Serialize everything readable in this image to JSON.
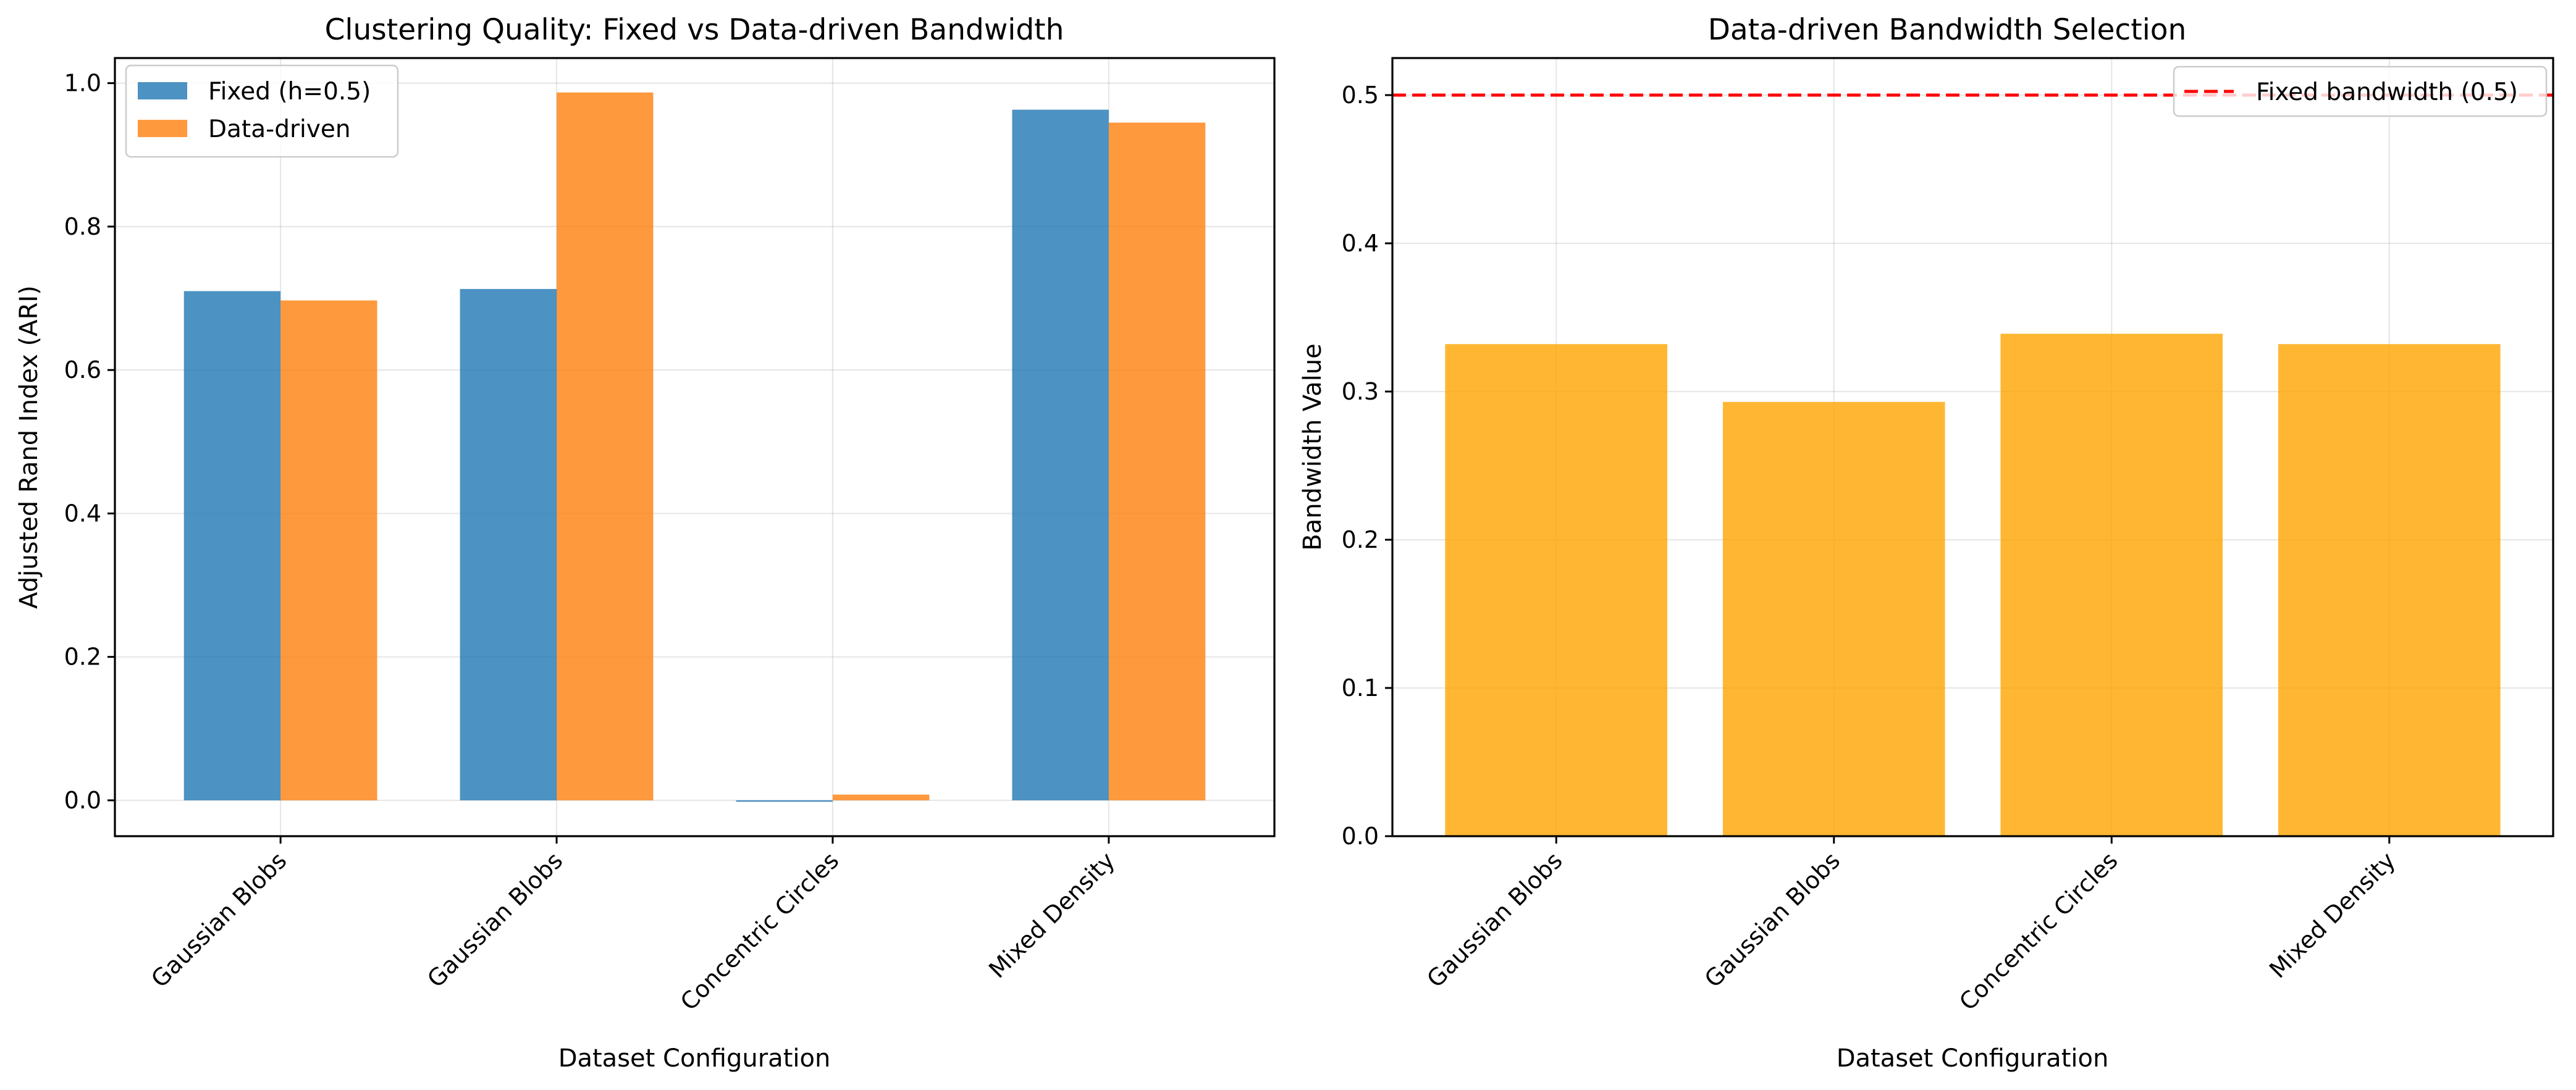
{
  "chart_data": [
    {
      "type": "bar",
      "title": "Clustering Quality: Fixed vs Data-driven Bandwidth",
      "xlabel": "Dataset Configuration",
      "ylabel": "Adjusted Rand Index (ARI)",
      "categories": [
        "Gaussian Blobs",
        "Gaussian Blobs",
        "Concentric Circles",
        "Mixed Density"
      ],
      "series": [
        {
          "name": "Fixed (h=0.5)",
          "values": [
            0.71,
            0.713,
            -0.002,
            0.963
          ],
          "color": "#1f77b4"
        },
        {
          "name": "Data-driven",
          "values": [
            0.697,
            0.987,
            0.008,
            0.945
          ],
          "color": "#ff7f0e"
        }
      ],
      "ylim": [
        -0.05,
        1.035
      ],
      "yticks": [
        "0.0",
        "0.2",
        "0.4",
        "0.6",
        "0.8",
        "1.0"
      ],
      "grid": true,
      "legend": "upper-left"
    },
    {
      "type": "bar",
      "title": "Data-driven Bandwidth Selection",
      "xlabel": "Dataset Configuration",
      "ylabel": "Bandwidth Value",
      "categories": [
        "Gaussian Blobs",
        "Gaussian Blobs",
        "Concentric Circles",
        "Mixed Density"
      ],
      "series": [
        {
          "values": [
            0.332,
            0.293,
            0.339,
            0.332
          ],
          "color": "#ffa500"
        }
      ],
      "reference_line": {
        "label": "Fixed bandwidth (0.5)",
        "value": 0.5,
        "color": "#ff0000",
        "style": "dashed"
      },
      "ylim": [
        0,
        0.525
      ],
      "yticks": [
        "0.0",
        "0.1",
        "0.2",
        "0.3",
        "0.4",
        "0.5"
      ],
      "grid": true,
      "legend": "upper-right"
    }
  ]
}
